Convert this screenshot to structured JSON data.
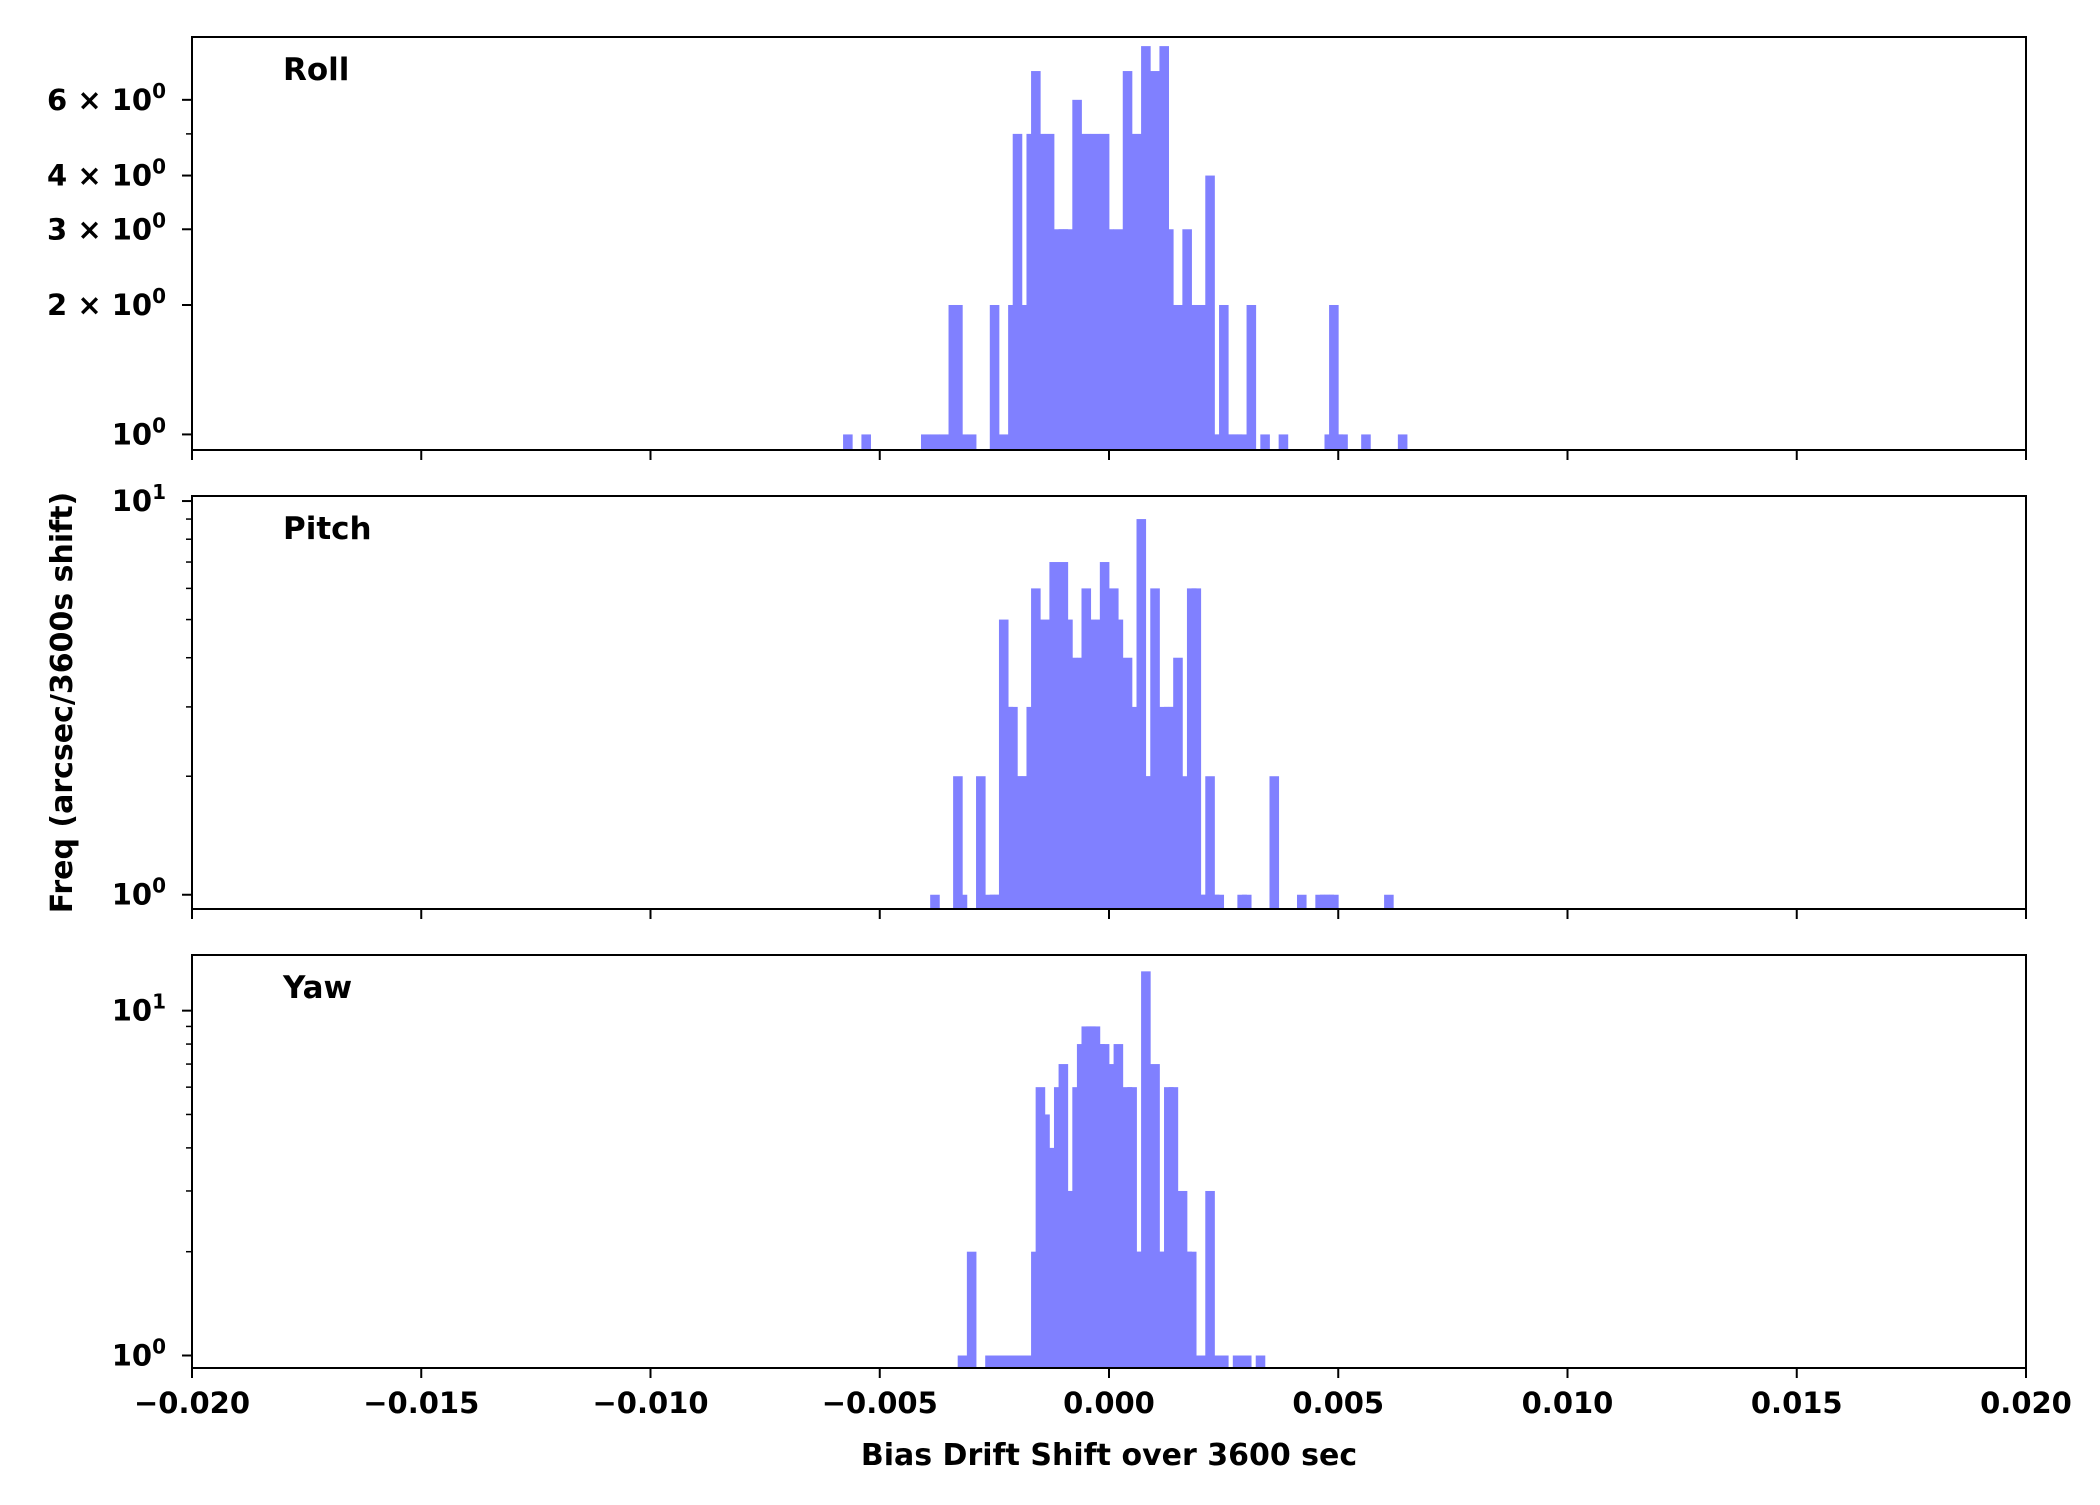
{
  "chart_data": {
    "type": "bar",
    "xlabel": "Bias Drift Shift over 3600 sec",
    "ylabel": "Freq (arcsec/3600s shift)",
    "xlim": [
      -0.02,
      0.02
    ],
    "x_ticks": [
      "−0.020",
      "−0.015",
      "−0.010",
      "−0.005",
      "0.000",
      "0.005",
      "0.010",
      "0.015",
      "0.020"
    ],
    "x_tick_values": [
      -0.02,
      -0.015,
      -0.01,
      -0.005,
      0.0,
      0.005,
      0.01,
      0.015,
      0.02
    ],
    "y_scale": "log",
    "bin_width": 0.0002,
    "bar_color": "#8080ff",
    "panels": [
      {
        "name": "Roll",
        "ylim": [
          0.92,
          8.4
        ],
        "y_ticks": [
          {
            "value": 1,
            "mant": "",
            "exp": "0"
          },
          {
            "value": 2,
            "mant": "2",
            "exp": "0"
          },
          {
            "value": 3,
            "mant": "3",
            "exp": "0"
          },
          {
            "value": 4,
            "mant": "4",
            "exp": "0"
          },
          {
            "value": 6,
            "mant": "6",
            "exp": "0"
          }
        ],
        "minor_ticks": [
          5
        ],
        "bins": [
          [
            -0.0058,
            1
          ],
          [
            -0.0054,
            1
          ],
          [
            -0.0041,
            1
          ],
          [
            -0.0039,
            1
          ],
          [
            -0.0037,
            1
          ],
          [
            -0.0035,
            2
          ],
          [
            -0.0034,
            2
          ],
          [
            -0.0033,
            1
          ],
          [
            -0.0031,
            1
          ],
          [
            -0.0026,
            2
          ],
          [
            -0.0024,
            1
          ],
          [
            -0.0022,
            2
          ],
          [
            -0.0021,
            5
          ],
          [
            -0.002,
            2
          ],
          [
            -0.0019,
            1
          ],
          [
            -0.0018,
            5
          ],
          [
            -0.0017,
            7
          ],
          [
            -0.0016,
            5
          ],
          [
            -0.0015,
            2
          ],
          [
            -0.0014,
            5
          ],
          [
            -0.0013,
            2
          ],
          [
            -0.0012,
            3
          ],
          [
            -0.0011,
            3
          ],
          [
            -0.001,
            3
          ],
          [
            -0.0009,
            1
          ],
          [
            -0.0008,
            6
          ],
          [
            -0.0007,
            3
          ],
          [
            -0.0006,
            5
          ],
          [
            -0.0005,
            3
          ],
          [
            -0.0004,
            5
          ],
          [
            -0.0003,
            3
          ],
          [
            -0.0002,
            5
          ],
          [
            -0.0001,
            3
          ],
          [
            0.0,
            2
          ],
          [
            0.0001,
            3
          ],
          [
            0.0002,
            2
          ],
          [
            0.0003,
            7
          ],
          [
            0.0004,
            2
          ],
          [
            0.0005,
            5
          ],
          [
            0.0006,
            2
          ],
          [
            0.0007,
            8
          ],
          [
            0.0008,
            5
          ],
          [
            0.0009,
            7
          ],
          [
            0.001,
            3
          ],
          [
            0.0011,
            8
          ],
          [
            0.0012,
            3
          ],
          [
            0.0013,
            2
          ],
          [
            0.0014,
            2
          ],
          [
            0.0015,
            1
          ],
          [
            0.0016,
            3
          ],
          [
            0.0017,
            2
          ],
          [
            0.0018,
            2
          ],
          [
            0.0019,
            2
          ],
          [
            0.002,
            2
          ],
          [
            0.0021,
            4
          ],
          [
            0.0022,
            1
          ],
          [
            0.0023,
            1
          ],
          [
            0.0024,
            2
          ],
          [
            0.0025,
            1
          ],
          [
            0.0026,
            1
          ],
          [
            0.0027,
            1
          ],
          [
            0.0028,
            1
          ],
          [
            0.003,
            2
          ],
          [
            0.0033,
            1
          ],
          [
            0.0037,
            1
          ],
          [
            0.0047,
            1
          ],
          [
            0.0048,
            2
          ],
          [
            0.0049,
            1
          ],
          [
            0.005,
            1
          ],
          [
            0.0055,
            1
          ],
          [
            0.0063,
            1
          ]
        ]
      },
      {
        "name": "Pitch",
        "ylim": [
          0.92,
          10.3
        ],
        "y_ticks": [
          {
            "value": 1,
            "mant": "",
            "exp": "0"
          },
          {
            "value": 10,
            "mant": "",
            "exp": "1"
          }
        ],
        "minor_ticks": [
          2,
          3,
          4,
          5,
          6,
          7,
          8,
          9
        ],
        "bins": [
          [
            -0.0039,
            1
          ],
          [
            -0.0034,
            2
          ],
          [
            -0.0033,
            1
          ],
          [
            -0.0029,
            2
          ],
          [
            -0.0027,
            1
          ],
          [
            -0.0026,
            1
          ],
          [
            -0.0025,
            1
          ],
          [
            -0.0024,
            5
          ],
          [
            -0.0023,
            3
          ],
          [
            -0.0022,
            3
          ],
          [
            -0.0021,
            2
          ],
          [
            -0.002,
            2
          ],
          [
            -0.0019,
            2
          ],
          [
            -0.0018,
            3
          ],
          [
            -0.0017,
            6
          ],
          [
            -0.0016,
            4
          ],
          [
            -0.0015,
            5
          ],
          [
            -0.0014,
            4
          ],
          [
            -0.0013,
            7
          ],
          [
            -0.0012,
            5
          ],
          [
            -0.0011,
            7
          ],
          [
            -0.001,
            5
          ],
          [
            -0.0009,
            4
          ],
          [
            -0.0008,
            3
          ],
          [
            -0.0007,
            4
          ],
          [
            -0.0006,
            6
          ],
          [
            -0.0005,
            5
          ],
          [
            -0.0004,
            4
          ],
          [
            -0.0003,
            5
          ],
          [
            -0.0002,
            7
          ],
          [
            -0.0001,
            4
          ],
          [
            0.0,
            6
          ],
          [
            0.0001,
            5
          ],
          [
            0.0002,
            2
          ],
          [
            0.0003,
            4
          ],
          [
            0.0004,
            2
          ],
          [
            0.0005,
            3
          ],
          [
            0.0006,
            9
          ],
          [
            0.0007,
            2
          ],
          [
            0.0008,
            2
          ],
          [
            0.0009,
            6
          ],
          [
            0.001,
            1
          ],
          [
            0.0011,
            3
          ],
          [
            0.0012,
            3
          ],
          [
            0.0013,
            3
          ],
          [
            0.0014,
            4
          ],
          [
            0.0015,
            2
          ],
          [
            0.0016,
            1
          ],
          [
            0.0017,
            6
          ],
          [
            0.0018,
            6
          ],
          [
            0.0019,
            1
          ],
          [
            0.002,
            1
          ],
          [
            0.0021,
            2
          ],
          [
            0.0022,
            1
          ],
          [
            0.0023,
            1
          ],
          [
            0.0028,
            1
          ],
          [
            0.0029,
            1
          ],
          [
            0.0035,
            2
          ],
          [
            0.0041,
            1
          ],
          [
            0.0045,
            1
          ],
          [
            0.0046,
            1
          ],
          [
            0.0047,
            1
          ],
          [
            0.0048,
            1
          ],
          [
            0.006,
            1
          ]
        ]
      },
      {
        "name": "Yaw",
        "ylim": [
          0.92,
          14.5
        ],
        "y_ticks": [
          {
            "value": 1,
            "mant": "",
            "exp": "0"
          },
          {
            "value": 10,
            "mant": "",
            "exp": "1"
          }
        ],
        "minor_ticks": [
          2,
          3,
          4,
          5,
          6,
          7,
          8,
          9
        ],
        "bins": [
          [
            -0.0033,
            1
          ],
          [
            -0.0031,
            2
          ],
          [
            -0.0027,
            1
          ],
          [
            -0.0026,
            1
          ],
          [
            -0.0025,
            1
          ],
          [
            -0.0024,
            1
          ],
          [
            -0.0023,
            1
          ],
          [
            -0.0021,
            1
          ],
          [
            -0.002,
            1
          ],
          [
            -0.0019,
            1
          ],
          [
            -0.0018,
            1
          ],
          [
            -0.0017,
            2
          ],
          [
            -0.0016,
            6
          ],
          [
            -0.0015,
            5
          ],
          [
            -0.0014,
            4
          ],
          [
            -0.0013,
            2
          ],
          [
            -0.0012,
            6
          ],
          [
            -0.0011,
            7
          ],
          [
            -0.001,
            3
          ],
          [
            -0.0009,
            3
          ],
          [
            -0.0008,
            6
          ],
          [
            -0.0007,
            8
          ],
          [
            -0.0006,
            9
          ],
          [
            -0.0005,
            9
          ],
          [
            -0.0004,
            9
          ],
          [
            -0.0003,
            8
          ],
          [
            -0.0002,
            8
          ],
          [
            -0.0001,
            7
          ],
          [
            0.0,
            6
          ],
          [
            0.0001,
            8
          ],
          [
            0.0002,
            3
          ],
          [
            0.0003,
            6
          ],
          [
            0.0004,
            6
          ],
          [
            0.0005,
            2
          ],
          [
            0.0006,
            2
          ],
          [
            0.0007,
            13
          ],
          [
            0.0008,
            4
          ],
          [
            0.0009,
            7
          ],
          [
            0.001,
            2
          ],
          [
            0.0011,
            2
          ],
          [
            0.0012,
            6
          ],
          [
            0.0013,
            6
          ],
          [
            0.0014,
            2
          ],
          [
            0.0015,
            3
          ],
          [
            0.0016,
            2
          ],
          [
            0.0017,
            2
          ],
          [
            0.0018,
            1
          ],
          [
            0.0019,
            1
          ],
          [
            0.002,
            1
          ],
          [
            0.0021,
            3
          ],
          [
            0.0022,
            1
          ],
          [
            0.0024,
            1
          ],
          [
            0.0027,
            1
          ],
          [
            0.0028,
            1
          ],
          [
            0.0029,
            1
          ],
          [
            0.0032,
            1
          ]
        ]
      }
    ]
  }
}
